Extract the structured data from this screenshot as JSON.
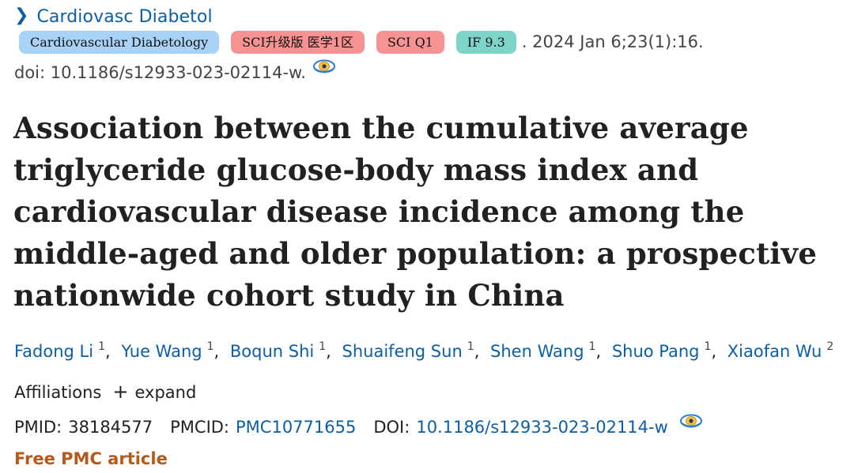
{
  "journal": {
    "link_label": "Cardiovasc Diabetol",
    "chevron_icon": "chevron-right-icon"
  },
  "badges": [
    {
      "label": "Cardiovascular Diabetology",
      "color": "#a8d2f6"
    },
    {
      "label": "SCI升级版 医学1区",
      "color": "#f69292"
    },
    {
      "label": "SCI Q1",
      "color": "#f69292"
    },
    {
      "label": "IF 9.3",
      "color": "#7dd4c8"
    }
  ],
  "citation": ". 2024 Jan 6;23(1):16.",
  "doi_line": {
    "text": "doi: 10.1186/s12933-023-02114-w.",
    "icon": "eye-icon"
  },
  "title": "Association between the cumulative average triglyceride glucose-body mass index and cardiovascular disease incidence among the middle-aged and older population: a prospective nationwide cohort study in China",
  "authors": [
    {
      "name": "Fadong Li",
      "aff": "1"
    },
    {
      "name": "Yue Wang",
      "aff": "1"
    },
    {
      "name": "Boqun Shi",
      "aff": "1"
    },
    {
      "name": "Shuaifeng Sun",
      "aff": "1"
    },
    {
      "name": "Shen Wang",
      "aff": "1"
    },
    {
      "name": "Shuo Pang",
      "aff": "1"
    },
    {
      "name": "Xiaofan Wu",
      "aff": "2"
    }
  ],
  "affiliations": {
    "label": "Affiliations",
    "expand_label": "expand",
    "expand_icon": "plus-icon"
  },
  "ids": {
    "pmid_label": "PMID:",
    "pmid": "38184577",
    "pmcid_label": "PMCID:",
    "pmcid": "PMC10771655",
    "doi_label": "DOI:",
    "doi": "10.1186/s12933-023-02114-w",
    "icon": "eye-icon"
  },
  "free_label": "Free PMC article",
  "colors": {
    "link": "#0b5ea8",
    "free": "#b35a1d",
    "text": "#212121",
    "muted": "#444444"
  }
}
